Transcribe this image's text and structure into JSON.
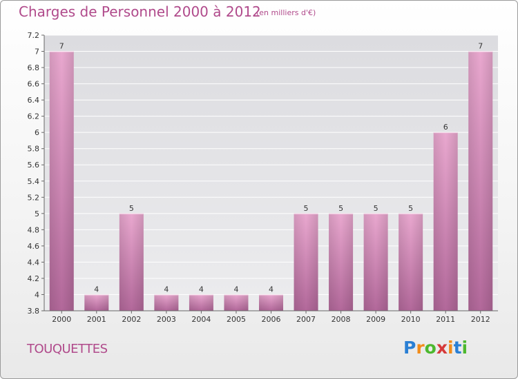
{
  "header": {
    "title": "Charges de Personnel 2000 à 2012",
    "subtitle": "(en milliers d'€)"
  },
  "footer": {
    "commune": "TOUQUETTES",
    "logo_letters": [
      "P",
      "r",
      "o",
      "x",
      "i",
      "t",
      "i"
    ],
    "logo_colors": [
      "#2a7fd4",
      "#f28c1a",
      "#4cb82e",
      "#d63a3a",
      "#f28c1a",
      "#2a7fd4",
      "#4cb82e"
    ]
  },
  "chart_data": {
    "type": "bar",
    "title": "Charges de Personnel 2000 à 2012",
    "categories": [
      "2000",
      "2001",
      "2002",
      "2003",
      "2004",
      "2005",
      "2006",
      "2007",
      "2008",
      "2009",
      "2010",
      "2011",
      "2012"
    ],
    "values": [
      7,
      4,
      5,
      4,
      4,
      4,
      4,
      5,
      5,
      5,
      5,
      6,
      7
    ],
    "data_labels": [
      "7",
      "4",
      "5",
      "4",
      "4",
      "4",
      "4",
      "5",
      "5",
      "5",
      "5",
      "6",
      "7"
    ],
    "bar_heights": [
      7.0,
      4.0,
      5.0,
      4.0,
      4.0,
      4.0,
      4.0,
      5.0,
      5.0,
      5.0,
      5.0,
      6.0,
      7.0
    ],
    "y_ticks": [
      3.8,
      4,
      4.2,
      4.4,
      4.6,
      4.8,
      5,
      5.2,
      5.4,
      5.6,
      5.8,
      6,
      6.2,
      6.4,
      6.6,
      6.8,
      7,
      7.2
    ],
    "y_tick_labels": [
      "3.8",
      "4",
      "4.2",
      "4.4",
      "4.6",
      "4.8",
      "5",
      "5.2",
      "5.4",
      "5.6",
      "5.8",
      "6",
      "6.2",
      "6.4",
      "6.6",
      "6.8",
      "7",
      "7.2"
    ],
    "ylim": [
      3.8,
      7.2
    ],
    "xlabel": "",
    "ylabel": "",
    "grid": true,
    "bar_color": "#c8709f"
  }
}
